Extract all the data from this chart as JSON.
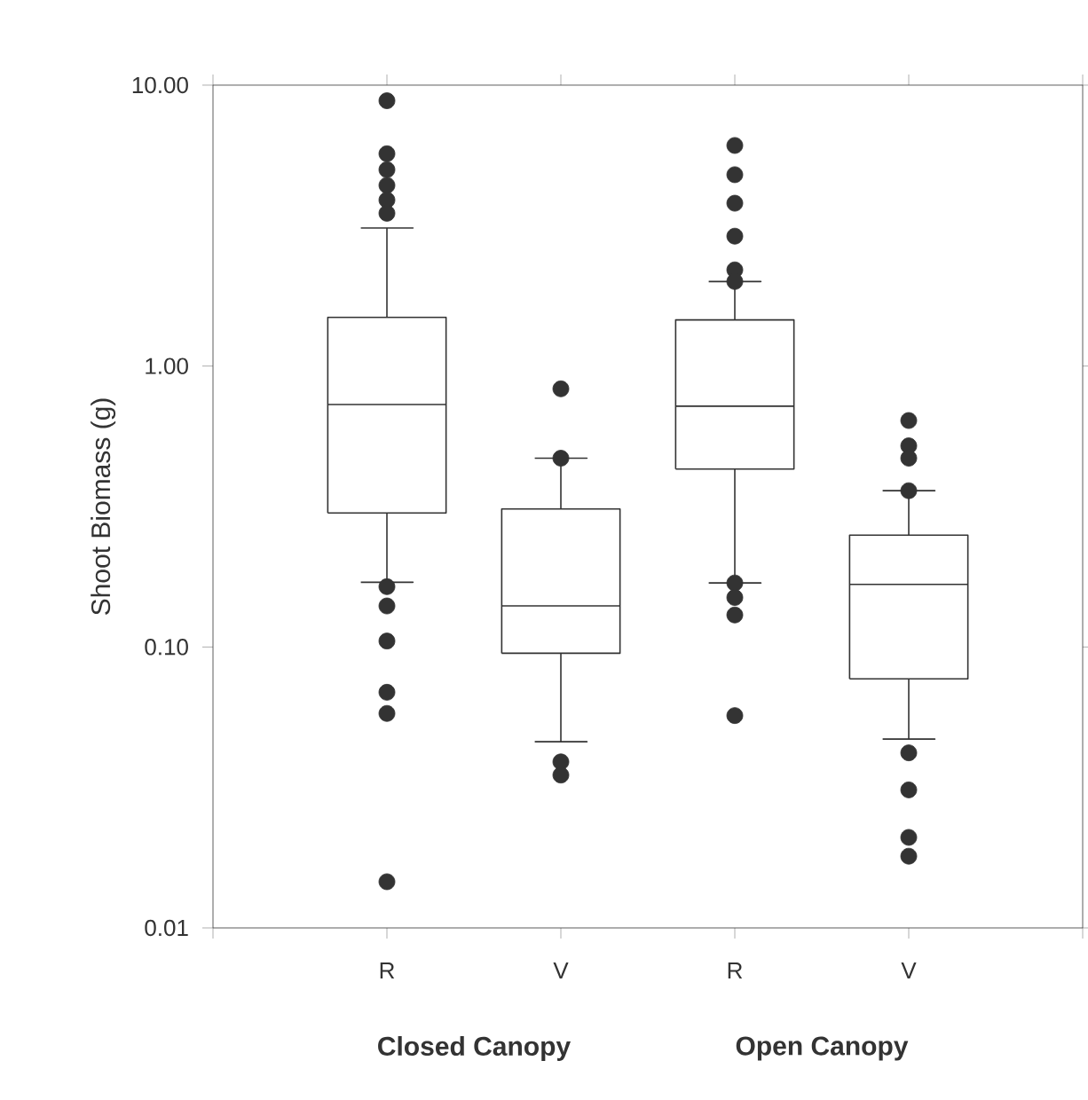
{
  "chart_data": {
    "type": "box",
    "ylabel": "Shoot Biomass (g)",
    "categories": [
      "R",
      "V",
      "R",
      "V"
    ],
    "annotations": [
      "Closed Canopy",
      "Open Canopy"
    ],
    "log": "y",
    "ylim": [
      0.01,
      10
    ],
    "yticks": [
      {
        "value": 0.01,
        "label": "0.01"
      },
      {
        "value": 0.1,
        "label": "0.10"
      },
      {
        "value": 1,
        "label": "1.00"
      },
      {
        "value": 10,
        "label": "10.00"
      }
    ],
    "color": "#333333",
    "marker": "circle",
    "boxes": [
      {
        "low": 0.17,
        "q1": 0.3,
        "median": 0.73,
        "q3": 1.49,
        "high": 3.1,
        "outliers": [
          8.8,
          5.7,
          5.0,
          4.4,
          3.9,
          3.5,
          0.164,
          0.14,
          0.105,
          0.069,
          0.058,
          0.0146
        ]
      },
      {
        "low": 0.046,
        "q1": 0.095,
        "median": 0.14,
        "q3": 0.31,
        "high": 0.47,
        "outliers": [
          0.83,
          0.47,
          0.039,
          0.035
        ]
      },
      {
        "low": 0.169,
        "q1": 0.43,
        "median": 0.72,
        "q3": 1.46,
        "high": 2.0,
        "outliers": [
          6.1,
          4.8,
          3.8,
          2.9,
          2.2,
          2.0,
          0.169,
          0.15,
          0.13,
          0.057
        ]
      },
      {
        "low": 0.047,
        "q1": 0.077,
        "median": 0.167,
        "q3": 0.25,
        "high": 0.36,
        "outliers": [
          0.64,
          0.52,
          0.47,
          0.36,
          0.042,
          0.031,
          0.021,
          0.018
        ]
      }
    ]
  }
}
